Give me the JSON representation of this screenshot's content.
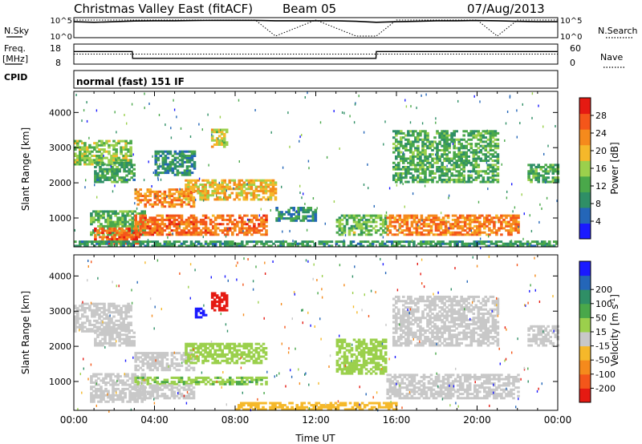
{
  "header": {
    "title": "Christmas Valley East (fitACF)",
    "beam": "Beam 05",
    "date": "07/Aug/2013"
  },
  "labels": {
    "nsky": "N.Sky",
    "nsearch": "N.Search",
    "freq_line1": "Freq.",
    "freq_line2": "[MHz]",
    "nave": "Nave",
    "cpid": "CPID",
    "cpid_value": "normal (fast) 151 IF"
  },
  "colors": {
    "power_scale": [
      "#1a1aff",
      "#2466b8",
      "#2f8f66",
      "#4aa84a",
      "#9bd04c",
      "#f5b82a",
      "#f58a1c",
      "#f4561a",
      "#e51a12"
    ],
    "velocity_scale": [
      "#e51a12",
      "#f4561a",
      "#f58a1c",
      "#f5b82a",
      "#c8c8c8",
      "#9bd04c",
      "#4aa84a",
      "#2f8f66",
      "#2466b8",
      "#1a1aff"
    ],
    "ground_scatter": "#c8c8c8"
  },
  "chart_data": [
    {
      "type": "line",
      "panel": "noise",
      "series": [
        {
          "name": "N.Sky",
          "x": [
            "00:00",
            "01:00",
            "02:00",
            "03:00",
            "04:00",
            "05:00",
            "06:00",
            "07:00",
            "08:00",
            "09:00",
            "10:00",
            "11:00",
            "12:00",
            "13:00",
            "14:00",
            "15:00",
            "16:00",
            "17:00",
            "18:00",
            "19:00",
            "20:00",
            "21:00",
            "22:00",
            "23:00",
            "24:00"
          ],
          "values": [
            30000,
            20000,
            30000,
            50000,
            60000,
            60000,
            70000,
            80000,
            80000,
            80000,
            60000,
            60000,
            60000,
            60000,
            40000,
            20000,
            30000,
            40000,
            60000,
            60000,
            70000,
            60000,
            40000,
            30000,
            30000
          ]
        },
        {
          "name": "N.Search",
          "x": [
            "00:00",
            "03:00",
            "06:00",
            "09:00",
            "10:00",
            "12:00",
            "14:00",
            "15:00",
            "16:00",
            "18:00",
            "20:00",
            "21:00",
            "22:00",
            "24:00"
          ],
          "values": [
            100000,
            100000,
            100000,
            100000,
            1,
            100000,
            1,
            1,
            100000,
            100000,
            100000,
            1,
            100000,
            100000
          ]
        }
      ],
      "yticks": [
        "10^5",
        "10^0"
      ],
      "yticks_right": [
        "10^5",
        "10^0"
      ]
    },
    {
      "type": "line",
      "panel": "frequency",
      "series": [
        {
          "name": "Freq.",
          "x": [
            "00:00",
            "02:54",
            "02:55",
            "14:59",
            "15:00",
            "24:00"
          ],
          "values": [
            14.5,
            14.5,
            10.5,
            10.5,
            14.5,
            14.5
          ]
        },
        {
          "name": "Nave",
          "x": [
            "00:00",
            "24:00"
          ],
          "values": [
            30,
            30
          ]
        }
      ],
      "ylabel": "Freq. [MHz]",
      "yticks": [
        "18",
        "8"
      ],
      "yticks_right": [
        "60",
        "0"
      ]
    },
    {
      "type": "heatmap",
      "panel": "power",
      "xlabel": "",
      "ylabel": "Slant Range [km]",
      "xlim": [
        0,
        24
      ],
      "ylim": [
        180,
        4600
      ],
      "yticks": [
        "1000",
        "2000",
        "3000",
        "4000"
      ],
      "colorbar": {
        "label": "Power [dB]",
        "ticks": [
          "4",
          "8",
          "12",
          "16",
          "20",
          "24",
          "28"
        ],
        "range": [
          0,
          32
        ]
      },
      "bands": [
        {
          "t0": 0.0,
          "t1": 2.8,
          "r0": 2500,
          "r1": 3200,
          "v": 15
        },
        {
          "t0": 1.0,
          "t1": 3.0,
          "r0": 2000,
          "r1": 2600,
          "v": 11
        },
        {
          "t0": 0.8,
          "t1": 3.5,
          "r0": 500,
          "r1": 1200,
          "v": 13
        },
        {
          "t0": 1.0,
          "t1": 3.2,
          "r0": 250,
          "r1": 700,
          "v": 26
        },
        {
          "t0": 3.0,
          "t1": 6.0,
          "r0": 1300,
          "r1": 1800,
          "v": 23
        },
        {
          "t0": 5.5,
          "t1": 10.0,
          "r0": 1500,
          "r1": 2100,
          "v": 20
        },
        {
          "t0": 3.0,
          "t1": 9.5,
          "r0": 500,
          "r1": 1100,
          "v": 25
        },
        {
          "t0": 4.0,
          "t1": 6.0,
          "r0": 2200,
          "r1": 2900,
          "v": 9
        },
        {
          "t0": 6.8,
          "t1": 7.6,
          "r0": 3000,
          "r1": 3500,
          "v": 18
        },
        {
          "t0": 10.0,
          "t1": 12.0,
          "r0": 900,
          "r1": 1300,
          "v": 9
        },
        {
          "t0": 13.0,
          "t1": 15.5,
          "r0": 500,
          "r1": 1100,
          "v": 14
        },
        {
          "t0": 15.5,
          "t1": 22.0,
          "r0": 500,
          "r1": 1100,
          "v": 24
        },
        {
          "t0": 15.8,
          "t1": 21.0,
          "r0": 2000,
          "r1": 3500,
          "v": 12
        },
        {
          "t0": 22.5,
          "t1": 24.0,
          "r0": 2000,
          "r1": 2500,
          "v": 12
        },
        {
          "t0": 0.0,
          "t1": 24.0,
          "r0": 180,
          "r1": 350,
          "v": 10
        }
      ]
    },
    {
      "type": "heatmap",
      "panel": "velocity",
      "xlabel": "Time UT",
      "ylabel": "Slant Range [km]",
      "xlim": [
        0,
        24
      ],
      "ylim": [
        180,
        4600
      ],
      "xticks": [
        "00:00",
        "04:00",
        "08:00",
        "12:00",
        "16:00",
        "20:00",
        "00:00"
      ],
      "yticks": [
        "1000",
        "2000",
        "3000",
        "4000"
      ],
      "colorbar": {
        "label": "Velocity [m s-1]",
        "ticks": [
          "-200",
          "-100",
          "-50",
          "-15",
          "15",
          "50",
          "100",
          "200"
        ],
        "range": [
          -250,
          250
        ]
      },
      "bands": [
        {
          "t0": 0.0,
          "t1": 2.8,
          "r0": 2400,
          "r1": 3200,
          "v": 0
        },
        {
          "t0": 1.0,
          "t1": 3.0,
          "r0": 2000,
          "r1": 2500,
          "v": 0
        },
        {
          "t0": 0.8,
          "t1": 3.5,
          "r0": 400,
          "r1": 1200,
          "v": 0
        },
        {
          "t0": 3.0,
          "t1": 6.0,
          "r0": 1300,
          "r1": 1800,
          "v": 0
        },
        {
          "t0": 5.5,
          "t1": 9.5,
          "r0": 1500,
          "r1": 2100,
          "v": 40
        },
        {
          "t0": 3.0,
          "t1": 9.5,
          "r0": 900,
          "r1": 1100,
          "v": 45
        },
        {
          "t0": 3.0,
          "t1": 6.0,
          "r0": 500,
          "r1": 900,
          "v": 0
        },
        {
          "t0": 6.8,
          "t1": 7.6,
          "r0": 3000,
          "r1": 3500,
          "v": -220
        },
        {
          "t0": 6.0,
          "t1": 6.5,
          "r0": 2800,
          "r1": 3100,
          "v": 220
        },
        {
          "t0": 13.0,
          "t1": 15.5,
          "r0": 1200,
          "r1": 2200,
          "v": 40
        },
        {
          "t0": 15.5,
          "t1": 22.0,
          "r0": 500,
          "r1": 1200,
          "v": 0
        },
        {
          "t0": 15.8,
          "t1": 21.0,
          "r0": 2000,
          "r1": 3400,
          "v": 0
        },
        {
          "t0": 22.5,
          "t1": 24.0,
          "r0": 2000,
          "r1": 2600,
          "v": 0
        },
        {
          "t0": 8.0,
          "t1": 16.0,
          "r0": 180,
          "r1": 400,
          "v": -60
        }
      ]
    }
  ]
}
